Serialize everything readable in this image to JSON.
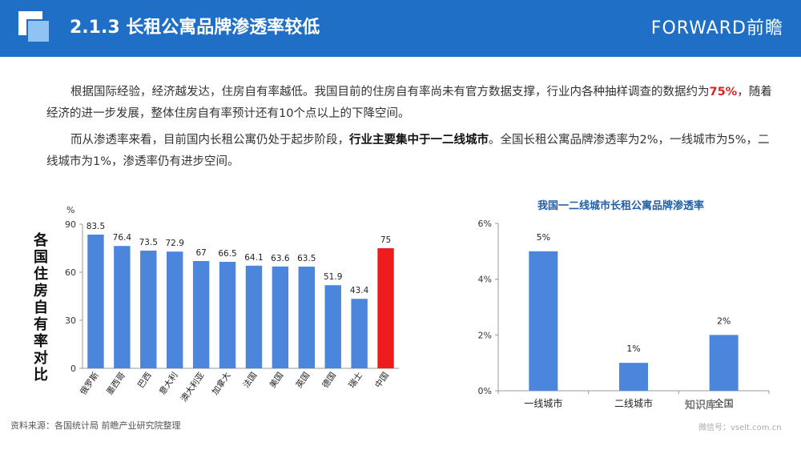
{
  "header": {
    "title": "2.1.3 长租公寓品牌渗透率较低",
    "brand": "FORWARD前瞻"
  },
  "paragraph1": {
    "part1": "根据国际经验，经济越发达，住房自有率越低。我国目前的住房自有率尚未有官方数据支撑，行业内各种抽样调查的数据约为",
    "highlight": "75%",
    "part2": "，随着经济的进一步发展，整体住房自有率预计还有10个点以上的下降空间。"
  },
  "paragraph2": {
    "part1": "而从渗透率来看，目前国内长租公寓仍处于起步阶段，",
    "bold": "行业主要集中于一二线城市",
    "part2": "。全国长租公寓品牌渗透率为2%，一线城市为5%，二线城市为1%，渗透率仍有进步空间。"
  },
  "chart_data": [
    {
      "type": "bar",
      "ylabel": "各国住房自有率对比",
      "unit": "%",
      "categories": [
        "俄罗斯",
        "墨西哥",
        "巴西",
        "意大利",
        "澳大利亚",
        "加拿大",
        "法国",
        "美国",
        "英国",
        "德国",
        "瑞士",
        "中国"
      ],
      "values": [
        83.5,
        76.4,
        73.5,
        72.9,
        67,
        66.5,
        64.1,
        63.6,
        63.5,
        51.9,
        43.4,
        75
      ],
      "value_labels": [
        "83.5",
        "76.4",
        "73.5",
        "72.9",
        "67",
        "66.5",
        "64.1",
        "63.6",
        "63.5",
        "51.9",
        "43.4",
        "75"
      ],
      "yticks": [
        "0",
        "30",
        "60",
        "90"
      ],
      "ylim": [
        0,
        90
      ],
      "colors": {
        "default": "#4b86dc",
        "highlight": "#ee1c1c"
      },
      "highlight_index": 11
    },
    {
      "type": "bar",
      "title": "我国一二线城市长租公寓品牌渗透率",
      "categories": [
        "一线城市",
        "二线城市",
        "全国"
      ],
      "values": [
        5,
        1,
        2
      ],
      "value_labels": [
        "5%",
        "1%",
        "2%"
      ],
      "yticks": [
        "0%",
        "2%",
        "4%",
        "6%"
      ],
      "ylim": [
        0,
        6
      ],
      "colors": {
        "default": "#4b86dc"
      }
    }
  ],
  "source": "资料来源：各国统计局 前瞻产业研究院整理",
  "watermark": {
    "line1": "知识库",
    "line2": "微信号：vselt.com.cn"
  }
}
